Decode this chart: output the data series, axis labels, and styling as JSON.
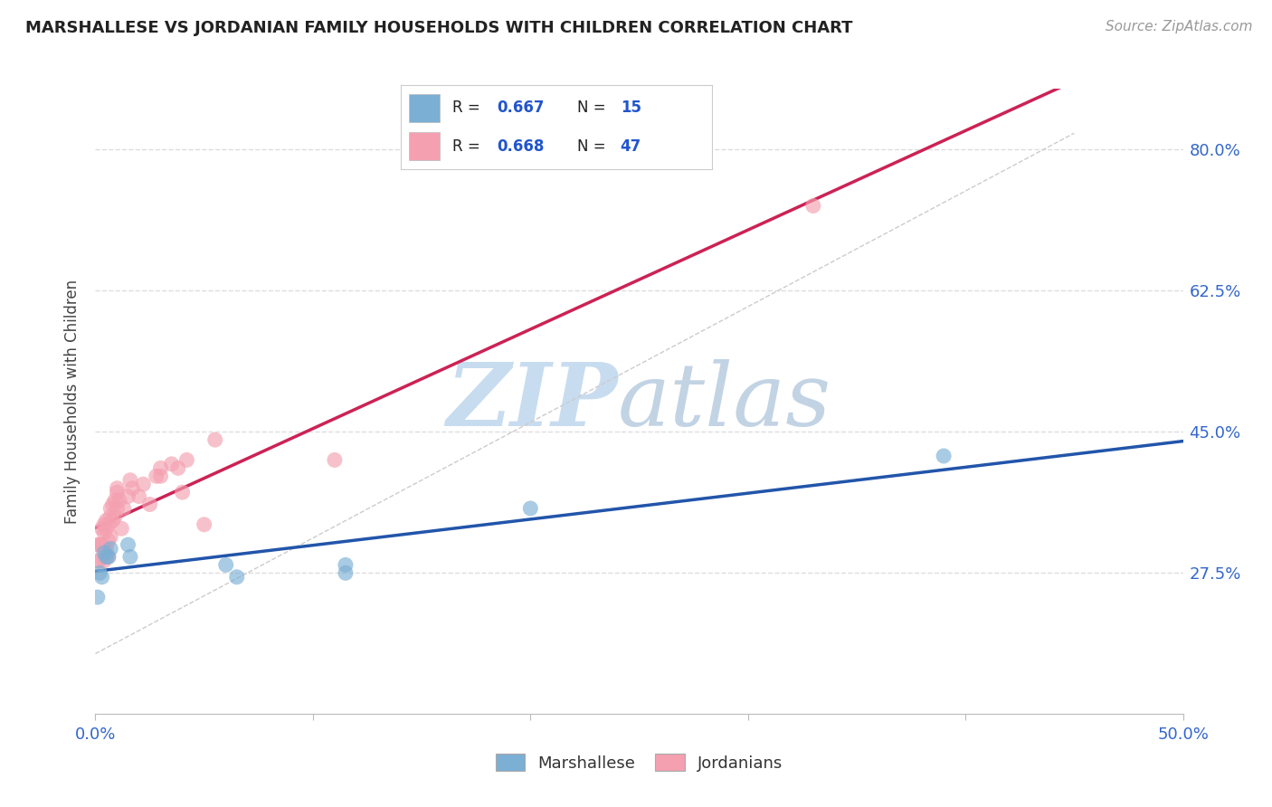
{
  "title": "MARSHALLESE VS JORDANIAN FAMILY HOUSEHOLDS WITH CHILDREN CORRELATION CHART",
  "source": "Source: ZipAtlas.com",
  "ylabel": "Family Households with Children",
  "xlim": [
    0.0,
    0.5
  ],
  "ylim": [
    0.1,
    0.875
  ],
  "xtick_values": [
    0.0,
    0.1,
    0.2,
    0.3,
    0.4,
    0.5
  ],
  "xtick_labels_show": [
    "0.0%",
    "",
    "",
    "",
    "",
    "50.0%"
  ],
  "ytick_values": [
    0.275,
    0.45,
    0.625,
    0.8
  ],
  "ytick_labels": [
    "27.5%",
    "45.0%",
    "62.5%",
    "80.0%"
  ],
  "marshallese_color": "#7BAFD4",
  "jordanian_color": "#F4A0B0",
  "marshallese_line_color": "#2255AA",
  "jordanian_line_color": "#CC2255",
  "diagonal_color": "#CCCCCC",
  "legend_color": "#2255CC",
  "R_marshallese": 0.667,
  "N_marshallese": 15,
  "R_jordanian": 0.668,
  "N_jordanian": 47,
  "marshallese_x": [
    0.001,
    0.002,
    0.003,
    0.004,
    0.005,
    0.006,
    0.007,
    0.015,
    0.016,
    0.06,
    0.065,
    0.115,
    0.115,
    0.2,
    0.39
  ],
  "marshallese_y": [
    0.245,
    0.275,
    0.27,
    0.3,
    0.295,
    0.295,
    0.305,
    0.31,
    0.295,
    0.285,
    0.27,
    0.275,
    0.285,
    0.355,
    0.42
  ],
  "jordanian_x": [
    0.001,
    0.001,
    0.002,
    0.002,
    0.003,
    0.003,
    0.003,
    0.004,
    0.004,
    0.004,
    0.004,
    0.005,
    0.005,
    0.005,
    0.006,
    0.006,
    0.006,
    0.007,
    0.007,
    0.007,
    0.008,
    0.008,
    0.009,
    0.009,
    0.01,
    0.01,
    0.01,
    0.011,
    0.012,
    0.013,
    0.015,
    0.016,
    0.017,
    0.02,
    0.022,
    0.025,
    0.028,
    0.03,
    0.03,
    0.035,
    0.038,
    0.04,
    0.042,
    0.05,
    0.055,
    0.11,
    0.33
  ],
  "jordanian_y": [
    0.29,
    0.31,
    0.29,
    0.31,
    0.31,
    0.31,
    0.33,
    0.29,
    0.305,
    0.325,
    0.335,
    0.305,
    0.33,
    0.34,
    0.295,
    0.315,
    0.335,
    0.32,
    0.345,
    0.355,
    0.34,
    0.36,
    0.345,
    0.365,
    0.355,
    0.375,
    0.38,
    0.365,
    0.33,
    0.355,
    0.37,
    0.39,
    0.38,
    0.37,
    0.385,
    0.36,
    0.395,
    0.395,
    0.405,
    0.41,
    0.405,
    0.375,
    0.415,
    0.335,
    0.44,
    0.415,
    0.73
  ],
  "background_color": "#FFFFFF",
  "watermark_zip_color": "#C8DCF0",
  "watermark_atlas_color": "#B8CCE0",
  "grid_color": "#DDDDDD",
  "title_color": "#222222",
  "source_color": "#999999",
  "tick_label_color": "#3366CC"
}
